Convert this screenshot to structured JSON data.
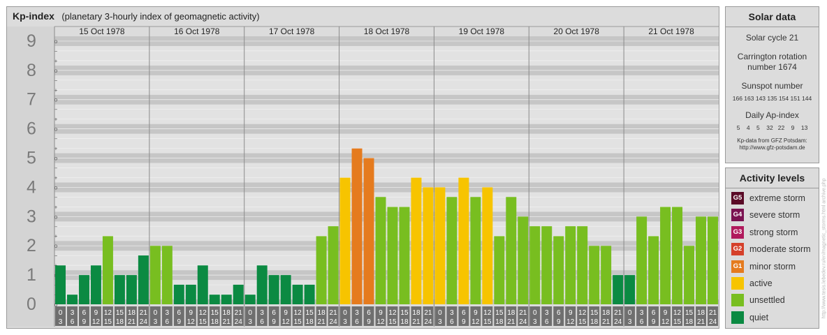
{
  "title": "Kp-index",
  "subtitle": "(planetary 3-hourly index of geomagnetic activity)",
  "chart_data": {
    "type": "bar",
    "title": "Kp-index",
    "subtitle": "(planetary 3-hourly index of geomagnetic activity)",
    "ylim": [
      0,
      9
    ],
    "y_ticks": [
      "0",
      "1",
      "2",
      "3",
      "4",
      "5",
      "6",
      "7",
      "8",
      "9"
    ],
    "sub_ticks": [
      "o",
      "+",
      "−",
      "o",
      "+",
      "−",
      "o",
      "+",
      "−",
      "o",
      "+",
      "−",
      "o",
      "+",
      "−",
      "o",
      "+",
      "−",
      "o",
      "+",
      "−",
      "o",
      "+",
      "−",
      "o",
      "+",
      "−",
      "o"
    ],
    "days": [
      "15 Oct 1978",
      "16 Oct 1978",
      "17 Oct 1978",
      "18 Oct 1978",
      "19 Oct 1978",
      "20 Oct 1978",
      "21 Oct 1978"
    ],
    "interval_labels": [
      [
        "0",
        "3"
      ],
      [
        "3",
        "6"
      ],
      [
        "6",
        "9"
      ],
      [
        "9",
        "12"
      ],
      [
        "12",
        "15"
      ],
      [
        "15",
        "18"
      ],
      [
        "18",
        "21"
      ],
      [
        "21",
        "24"
      ]
    ],
    "values": [
      1.33,
      0.33,
      1.0,
      1.33,
      2.33,
      1.0,
      1.0,
      1.67,
      2.0,
      2.0,
      0.67,
      0.67,
      1.33,
      0.33,
      0.33,
      0.67,
      0.33,
      1.33,
      1.0,
      1.0,
      0.67,
      0.67,
      2.33,
      2.67,
      4.33,
      5.33,
      5.0,
      3.67,
      3.33,
      3.33,
      4.33,
      4.0,
      4.0,
      3.67,
      4.33,
      3.67,
      4.0,
      2.33,
      3.67,
      3.0,
      2.67,
      2.67,
      2.33,
      2.67,
      2.67,
      2.0,
      2.0,
      1.0,
      1.0,
      3.0,
      2.33,
      3.33,
      3.33,
      2.0,
      3.0,
      3.0
    ],
    "grid": true
  },
  "solar": {
    "heading": "Solar data",
    "cycle": "Solar cycle 21",
    "carrington_1": "Carrington rotation",
    "carrington_2": "number 1674",
    "sunspot_heading": "Sunspot number",
    "sunspot_values": "166 163 143 135 154 151 144",
    "ap_heading": "Daily Ap-index",
    "ap_values": "5    4    5    32   22    9    13",
    "credit_1": "Kp-data from GFZ Potsdam:",
    "credit_2": "http://www.gfz-potsdam.de"
  },
  "levels": {
    "heading": "Activity levels",
    "items": [
      {
        "code": "G5",
        "label": "extreme storm",
        "color": "#5a0a26"
      },
      {
        "code": "G4",
        "label": "severe storm",
        "color": "#7a1250"
      },
      {
        "code": "G3",
        "label": "strong storm",
        "color": "#b01a5c"
      },
      {
        "code": "G2",
        "label": "moderate storm",
        "color": "#d5402a"
      },
      {
        "code": "G1",
        "label": "minor storm",
        "color": "#e57b1e"
      },
      {
        "code": "",
        "label": "active",
        "color": "#f7c400"
      },
      {
        "code": "",
        "label": "unsettled",
        "color": "#78be20"
      },
      {
        "code": "",
        "label": "quiet",
        "color": "#0b8a42"
      }
    ]
  },
  "vertical_credit": "http://www.tesis.lebedev.ru/en/magnetic_storms.html  archive.php",
  "colors": {
    "quiet": "#0b8a42",
    "unsettled": "#78be20",
    "active": "#f7c400",
    "minor_storm": "#e57b1e",
    "band_dark": "#c6c6c6",
    "band_light": "#e2e2e2",
    "axis_number": "#7a7a7a",
    "hour_cell": "#6f6f6f"
  }
}
